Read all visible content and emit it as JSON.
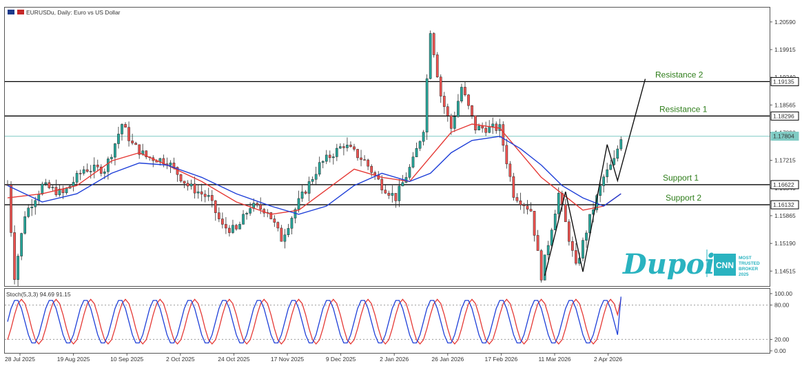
{
  "header": {
    "symbol_title": "EURUSDu, Daily:  Euro vs US Dollar",
    "oscillator_title": "Stoch(5,3,3) 94.69 91.15"
  },
  "price_axis": [
    "1.20590",
    "1.19915",
    "1.19240",
    "1.18565",
    "1.17890",
    "1.17215",
    "1.16540",
    "1.15865",
    "1.15190",
    "1.14515"
  ],
  "stoch_axis": [
    "100.00",
    "80.00",
    "20.00",
    "0.00"
  ],
  "date_axis": [
    "28 Jul 2025",
    "19 Aug 2025",
    "10 Sep 2025",
    "2 Oct 2025",
    "24 Oct 2025",
    "17 Nov 2025",
    "9 Dec 2025",
    "2 Jan 2026",
    "26 Jan 2026",
    "17 Feb 2026",
    "11 Mar 2026",
    "2 Apr 2026"
  ],
  "levels": [
    {
      "label": "Resistance 2",
      "price_tag": "1.19135",
      "value": 1.19135
    },
    {
      "label": "Resistance 1",
      "price_tag": "1.18296",
      "value": 1.18296
    },
    {
      "label": "",
      "price_tag": "1.17804",
      "value": 1.17804
    },
    {
      "label": "Support 1",
      "price_tag": "1.16622",
      "value": 1.16622
    },
    {
      "label": "Support 2",
      "price_tag": "1.16132",
      "value": 1.16132
    }
  ],
  "logo": {
    "brand": "Dupoin",
    "badge": "CNN",
    "tagline": [
      "MOST",
      "TRUSTED",
      "BROKER",
      "2025"
    ]
  },
  "colors": {
    "bull": "#26a69a",
    "bear": "#ef5350",
    "ma_fast": "#e53935",
    "ma_slow": "#1e3fd8",
    "level_line": "#000000",
    "bid_line": "#80cbc4",
    "label_green": "#2e7d1a",
    "brand_teal": "#2ab3c0"
  },
  "chart_data": {
    "type": "candlestick",
    "symbol": "EURUSDu",
    "timeframe": "Daily",
    "date_range": [
      "2025-07-28",
      "2026-04-08"
    ],
    "ylim": [
      1.1415,
      1.2094
    ],
    "anchors": [
      {
        "x": 0,
        "close": 1.1662
      },
      {
        "x": 2,
        "close": 1.144
      },
      {
        "x": 5,
        "close": 1.159
      },
      {
        "x": 10,
        "close": 1.166
      },
      {
        "x": 16,
        "close": 1.164
      },
      {
        "x": 22,
        "close": 1.17
      },
      {
        "x": 28,
        "close": 1.17
      },
      {
        "x": 30,
        "close": 1.174
      },
      {
        "x": 33,
        "close": 1.181
      },
      {
        "x": 36,
        "close": 1.176
      },
      {
        "x": 40,
        "close": 1.173
      },
      {
        "x": 46,
        "close": 1.172
      },
      {
        "x": 52,
        "close": 1.166
      },
      {
        "x": 58,
        "close": 1.163
      },
      {
        "x": 62,
        "close": 1.156
      },
      {
        "x": 66,
        "close": 1.155
      },
      {
        "x": 70,
        "close": 1.161
      },
      {
        "x": 75,
        "close": 1.16
      },
      {
        "x": 79,
        "close": 1.153
      },
      {
        "x": 84,
        "close": 1.162
      },
      {
        "x": 90,
        "close": 1.171
      },
      {
        "x": 97,
        "close": 1.176
      },
      {
        "x": 103,
        "close": 1.172
      },
      {
        "x": 108,
        "close": 1.166
      },
      {
        "x": 112,
        "close": 1.163
      },
      {
        "x": 117,
        "close": 1.172
      },
      {
        "x": 120,
        "close": 1.18
      },
      {
        "x": 122,
        "close": 1.204
      },
      {
        "x": 125,
        "close": 1.188
      },
      {
        "x": 128,
        "close": 1.18
      },
      {
        "x": 131,
        "close": 1.19
      },
      {
        "x": 135,
        "close": 1.18
      },
      {
        "x": 142,
        "close": 1.18
      },
      {
        "x": 146,
        "close": 1.164
      },
      {
        "x": 151,
        "close": 1.16
      },
      {
        "x": 154,
        "close": 1.144
      },
      {
        "x": 159,
        "close": 1.164
      },
      {
        "x": 164,
        "close": 1.146
      },
      {
        "x": 168,
        "close": 1.158
      },
      {
        "x": 172,
        "close": 1.168
      },
      {
        "x": 175,
        "close": 1.172
      },
      {
        "x": 177,
        "close": 1.178
      }
    ],
    "moving_averages": [
      {
        "points": [
          [
            0,
            1.163
          ],
          [
            10,
            1.164
          ],
          [
            20,
            1.166
          ],
          [
            30,
            1.172
          ],
          [
            38,
            1.174
          ],
          [
            46,
            1.171
          ],
          [
            56,
            1.167
          ],
          [
            66,
            1.162
          ],
          [
            76,
            1.159
          ],
          [
            84,
            1.16
          ],
          [
            92,
            1.165
          ],
          [
            100,
            1.17
          ],
          [
            108,
            1.168
          ],
          [
            116,
            1.167
          ],
          [
            122,
            1.173
          ],
          [
            128,
            1.179
          ],
          [
            134,
            1.181
          ],
          [
            142,
            1.18
          ],
          [
            148,
            1.174
          ],
          [
            154,
            1.168
          ],
          [
            160,
            1.164
          ],
          [
            166,
            1.16
          ],
          [
            172,
            1.161
          ],
          [
            177,
            1.164
          ]
        ]
      },
      {
        "points": [
          [
            0,
            1.166
          ],
          [
            10,
            1.162
          ],
          [
            20,
            1.164
          ],
          [
            30,
            1.169
          ],
          [
            38,
            1.1715
          ],
          [
            46,
            1.171
          ],
          [
            56,
            1.168
          ],
          [
            66,
            1.164
          ],
          [
            76,
            1.161
          ],
          [
            84,
            1.159
          ],
          [
            92,
            1.161
          ],
          [
            100,
            1.166
          ],
          [
            108,
            1.169
          ],
          [
            116,
            1.167
          ],
          [
            122,
            1.169
          ],
          [
            128,
            1.174
          ],
          [
            134,
            1.177
          ],
          [
            142,
            1.178
          ],
          [
            148,
            1.175
          ],
          [
            154,
            1.171
          ],
          [
            160,
            1.166
          ],
          [
            166,
            1.163
          ],
          [
            172,
            1.161
          ],
          [
            177,
            1.164
          ]
        ]
      }
    ],
    "pattern_lines": [
      [
        [
          155,
          1.144
        ],
        [
          161,
          1.1645
        ],
        [
          166,
          1.145
        ],
        [
          173,
          1.176
        ],
        [
          176,
          1.1672
        ],
        [
          184,
          1.192
        ]
      ]
    ],
    "stochastic": {
      "params": "5,3,3",
      "k_last": 94.69,
      "d_last": 91.15,
      "levels": [
        20,
        80
      ],
      "ylim": [
        0,
        100
      ],
      "cycle_days": 10,
      "phase_days": 1.5,
      "high": 90,
      "low": 12
    }
  }
}
